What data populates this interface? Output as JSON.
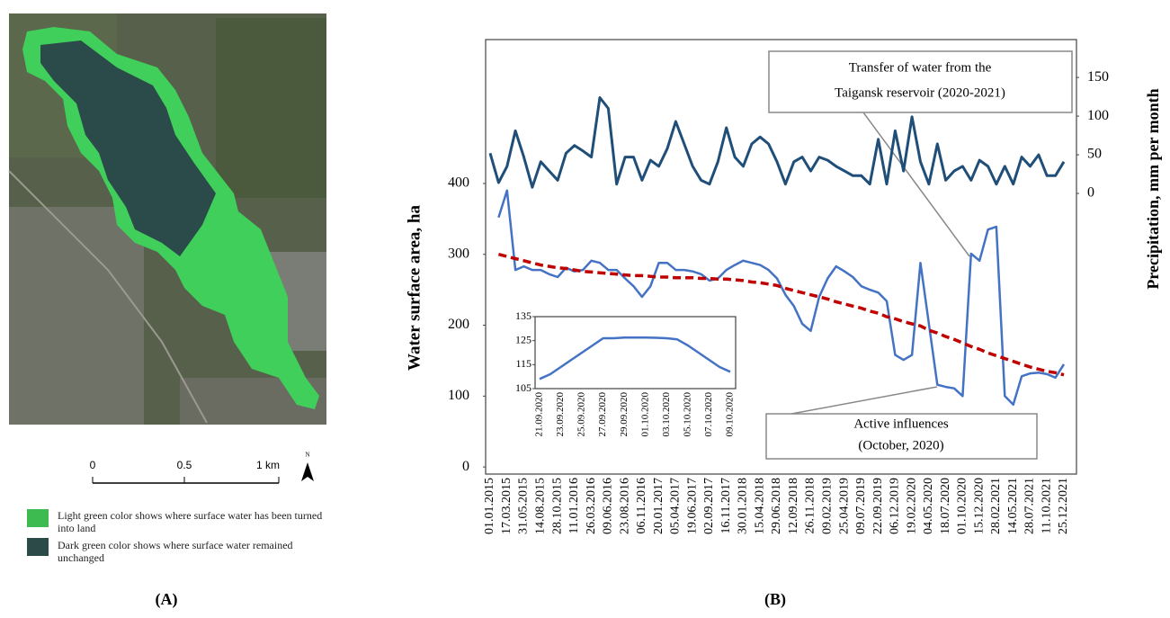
{
  "panels": [
    "(A)",
    "(B)"
  ],
  "map": {
    "scale_labels": [
      "0",
      "0.5",
      "1 km"
    ],
    "north": "N",
    "legend": [
      "Light green color shows where surface water has been turned into land",
      "Dark green color shows where surface water remained unchanged"
    ]
  },
  "chart_data": [
    {
      "type": "line",
      "ylabel": "Water surface area,  ha",
      "y2label": "Precipitation, mm per month",
      "categories": [
        "01.01.2015",
        null,
        "17.03.2015",
        null,
        "31.05.2015",
        null,
        "14.08.2015",
        null,
        "28.10.2015",
        null,
        "11.01.2016",
        null,
        "26.03.2016",
        null,
        "09.06.2016",
        null,
        "23.08.2016",
        null,
        "06.11.2016",
        null,
        "20.01.2017",
        null,
        "05.04.2017",
        null,
        "19.06.2017",
        null,
        "02.09.2017",
        null,
        "16.11.2017",
        null,
        "30.01.2018",
        null,
        "15.04.2018",
        null,
        "29.06.2018",
        null,
        "12.09.2018",
        null,
        "26.11.2018",
        null,
        "09.02.2019",
        null,
        "25.04.2019",
        null,
        "09.07.2019",
        null,
        "22.09.2019",
        null,
        "06.12.2019",
        null,
        "19.02.2020",
        null,
        "04.05.2020",
        null,
        "18.07.2020",
        null,
        "01.10.2020",
        null,
        "15.12.2020",
        null,
        "28.02.2021",
        null,
        "14.05.2021",
        null,
        "28.07.2021",
        null,
        "11.10.2021",
        null,
        "25.12.2021"
      ],
      "series": [
        {
          "color": "#4472c4",
          "width": 2.5,
          "values": [
            null,
            352,
            390,
            278,
            283,
            278,
            278,
            272,
            268,
            281,
            276,
            278,
            291,
            288,
            278,
            278,
            266,
            255,
            240,
            255,
            288,
            288,
            278,
            278,
            276,
            272,
            263,
            266,
            278,
            285,
            291,
            288,
            285,
            278,
            266,
            243,
            227,
            202,
            192,
            240,
            266,
            283,
            276,
            268,
            255,
            250,
            246,
            234,
            158,
            151,
            158,
            288,
            202,
            116,
            113,
            111,
            100,
            301,
            291,
            335,
            339,
            100,
            88,
            128,
            132,
            133,
            131,
            126,
            145
          ]
        },
        {
          "color": "#1f4e79",
          "width": 3,
          "axis": "y2",
          "values": [
            52,
            14,
            35,
            81,
            47,
            8,
            41,
            29,
            17,
            52,
            62,
            55,
            47,
            124,
            110,
            12,
            47,
            47,
            17,
            43,
            35,
            58,
            93,
            64,
            35,
            17,
            12,
            41,
            85,
            47,
            35,
            64,
            73,
            64,
            41,
            12,
            41,
            47,
            29,
            47,
            43,
            35,
            29,
            23,
            23,
            12,
            70,
            12,
            81,
            29,
            99,
            41,
            12,
            64,
            17,
            29,
            35,
            17,
            43,
            35,
            12,
            35,
            12,
            47,
            35,
            50,
            23,
            23,
            41
          ]
        },
        {
          "color": "#c00000",
          "width": 3.5,
          "dash": true,
          "values": [
            null,
            300,
            297,
            294,
            291,
            288,
            285,
            283,
            281,
            280,
            278,
            276,
            275,
            274,
            273,
            272,
            271,
            270,
            270,
            269,
            268,
            268,
            267,
            267,
            267,
            266,
            266,
            265,
            265,
            264,
            263,
            261,
            260,
            258,
            256,
            252,
            249,
            246,
            243,
            240,
            237,
            233,
            230,
            227,
            224,
            220,
            217,
            212,
            209,
            205,
            202,
            199,
            193,
            189,
            184,
            180,
            175,
            170,
            166,
            161,
            157,
            153,
            149,
            145,
            141,
            138,
            135,
            133,
            130
          ]
        }
      ],
      "ylim": [
        -10,
        603
      ],
      "yticks": [
        0,
        100,
        200,
        300,
        400
      ],
      "y2lim": [
        -363,
        199
      ],
      "y2ticks": [
        0,
        50,
        100,
        150
      ],
      "annotations": [
        {
          "lines": [
            "Transfer of water from the",
            "Taigansk reservoir (2020-2021)"
          ]
        },
        {
          "lines": [
            "Active influences",
            "(October, 2020)"
          ]
        }
      ]
    },
    {
      "type": "line",
      "categories": [
        "21.09.2020",
        null,
        "23.09.2020",
        null,
        "25.09.2020",
        null,
        "27.09.2020",
        null,
        "29.09.2020",
        null,
        "01.10.2020",
        null,
        "03.10.2020",
        null,
        "05.10.2020",
        null,
        "07.10.2020",
        null,
        "09.10.2020"
      ],
      "series": [
        {
          "color": "#4472c4",
          "width": 2.5,
          "values": [
            109,
            111,
            114,
            117,
            120,
            123,
            126,
            126,
            126.3,
            126.3,
            126.3,
            126.2,
            126,
            125.5,
            123,
            120,
            117,
            114,
            112
          ]
        }
      ],
      "ylim": [
        105,
        135
      ],
      "yticks": [
        105,
        115,
        125,
        135
      ]
    }
  ]
}
